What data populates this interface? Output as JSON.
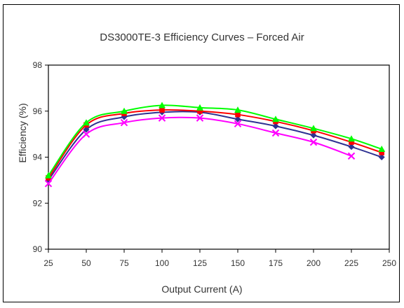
{
  "chart_data": {
    "type": "line",
    "title": "DS3000TE-3 Efficiency Curves – Forced Air",
    "xlabel": "Output Current (A)",
    "ylabel": "Efficiency (%)",
    "xlim": [
      25,
      250
    ],
    "ylim": [
      90,
      98
    ],
    "x_ticks": [
      "25",
      "50",
      "75",
      "100",
      "125",
      "150",
      "175",
      "200",
      "225",
      "250"
    ],
    "y_ticks": [
      "90",
      "92",
      "94",
      "96",
      "98"
    ],
    "grid": true,
    "series": [
      {
        "marker": "diamond",
        "color": "#2e3192",
        "x": [
          25,
          50,
          75,
          100,
          125,
          150,
          175,
          200,
          225,
          245
        ],
        "values": [
          93.0,
          95.2,
          95.75,
          95.95,
          95.95,
          95.65,
          95.35,
          94.95,
          94.45,
          94.0
        ]
      },
      {
        "marker": "square",
        "color": "#ff0000",
        "x": [
          25,
          50,
          75,
          100,
          125,
          150,
          175,
          200,
          225,
          245
        ],
        "values": [
          93.1,
          95.4,
          95.9,
          96.05,
          96.0,
          95.85,
          95.55,
          95.15,
          94.65,
          94.2
        ]
      },
      {
        "marker": "triangle",
        "color": "#00ff00",
        "x": [
          25,
          50,
          75,
          100,
          125,
          150,
          175,
          200,
          225,
          245
        ],
        "values": [
          93.2,
          95.5,
          96.0,
          96.25,
          96.15,
          96.05,
          95.65,
          95.25,
          94.8,
          94.35
        ]
      },
      {
        "marker": "x",
        "color": "#ff00ff",
        "x": [
          25,
          50,
          75,
          100,
          125,
          150,
          175,
          200,
          225
        ],
        "values": [
          92.85,
          95.0,
          95.5,
          95.7,
          95.7,
          95.45,
          95.05,
          94.65,
          94.05
        ]
      }
    ]
  }
}
